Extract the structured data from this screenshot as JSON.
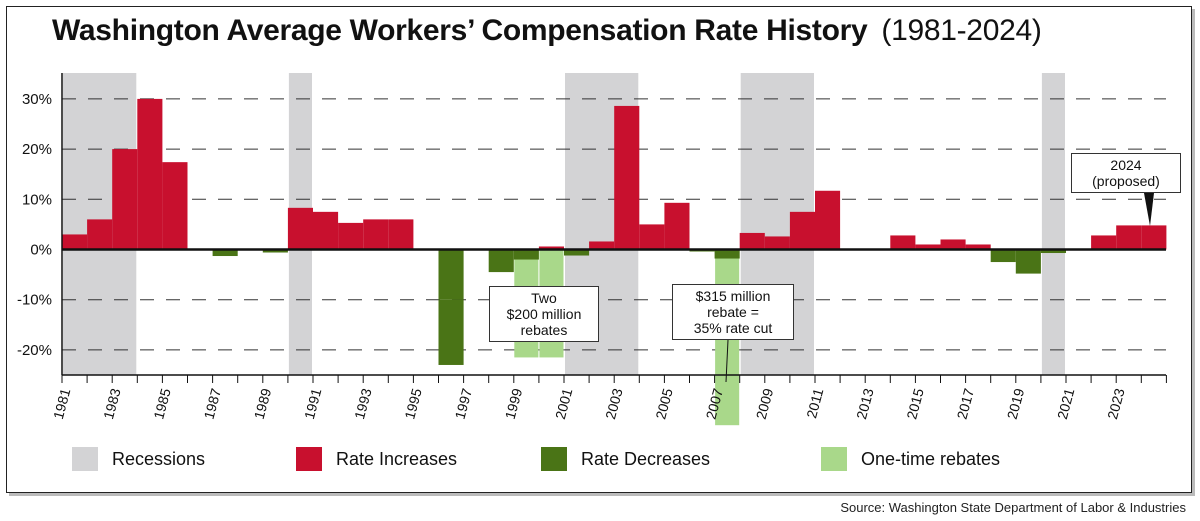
{
  "title": "Washington Average Workers’ Compensation Rate History",
  "subtitle": "(1981-2024)",
  "source": "Source: Washington State Department of Labor & Industries",
  "colors": {
    "recession": "#d3d3d5",
    "increase": "#c8102e",
    "decrease": "#4a7416",
    "rebate": "#a9d88a",
    "axis": "#111111",
    "grid": "#333333"
  },
  "legend": [
    {
      "key": "recession",
      "label": "Recessions"
    },
    {
      "key": "increase",
      "label": "Rate Increases"
    },
    {
      "key": "decrease",
      "label": "Rate Decreases"
    },
    {
      "key": "rebate",
      "label": "One-time rebates"
    }
  ],
  "annotations": [
    {
      "text": "Two\n$200 million\nrebates",
      "year": 1999.5,
      "y": -7.5
    },
    {
      "text": "$315 million\nrebate =\n35% rate cut",
      "year": 2007,
      "y": -7.5
    },
    {
      "text": "2024\n(proposed)",
      "year": 2023.7,
      "y": 15.5
    }
  ],
  "chart_data": {
    "type": "bar",
    "title": "Washington Average Workers’ Compensation Rate History",
    "subtitle": "(1981-2024)",
    "xlabel": "",
    "ylabel": "",
    "ylim": [
      -25,
      35
    ],
    "x_tick_labels": [
      "1981",
      "1983",
      "1985",
      "1987",
      "1989",
      "1991",
      "1993",
      "1995",
      "1997",
      "1999",
      "2001",
      "2003",
      "2005",
      "2007",
      "2009",
      "2011",
      "2013",
      "2015",
      "2017",
      "2019",
      "2021",
      "2023"
    ],
    "y_tick_labels": [
      {
        "value": 30,
        "label": "30%"
      },
      {
        "value": 20,
        "label": "20%"
      },
      {
        "value": 10,
        "label": "10%"
      },
      {
        "value": 0,
        "label": "0%"
      },
      {
        "value": -10,
        "label": "-10%"
      },
      {
        "value": -20,
        "label": "-20%"
      }
    ],
    "grid": "dashed horizontal",
    "legend_position": "bottom",
    "categories": [
      1981,
      1982,
      1983,
      1984,
      1985,
      1986,
      1987,
      1988,
      1989,
      1990,
      1991,
      1992,
      1993,
      1994,
      1995,
      1996,
      1997,
      1998,
      1999,
      2000,
      2001,
      2002,
      2003,
      2004,
      2005,
      2006,
      2007,
      2008,
      2009,
      2010,
      2011,
      2012,
      2013,
      2014,
      2015,
      2016,
      2017,
      2018,
      2019,
      2020,
      2021,
      2022,
      2023,
      2024
    ],
    "values": [
      3.0,
      6.0,
      20.0,
      30.0,
      17.4,
      0,
      -1.3,
      0,
      -0.6,
      8.3,
      7.5,
      5.3,
      6.0,
      6.0,
      0,
      -10.0,
      0,
      -4.5,
      -2.0,
      0.6,
      -1.2,
      1.6,
      28.6,
      5.0,
      9.3,
      -0.4,
      -1.8,
      3.3,
      2.6,
      7.5,
      11.7,
      0,
      0,
      2.8,
      1.0,
      2.0,
      1.0,
      -2.5,
      -4.8,
      -0.7,
      0,
      2.8,
      4.8,
      4.8
    ],
    "extra_decrease": [
      {
        "year": 1996,
        "from": -10.0,
        "to": -23.0
      }
    ],
    "rebates": [
      {
        "year": 1999,
        "value": -21.5
      },
      {
        "year": 2000,
        "value": -21.5
      },
      {
        "year": 2007,
        "value": -35.0
      }
    ],
    "recessions": [
      {
        "start": 1981,
        "end": 1983
      },
      {
        "start": 1990,
        "end": 1990
      },
      {
        "start": 2001,
        "end": 2003
      },
      {
        "start": 2008,
        "end": 2010
      },
      {
        "start": 2020,
        "end": 2020
      }
    ]
  }
}
